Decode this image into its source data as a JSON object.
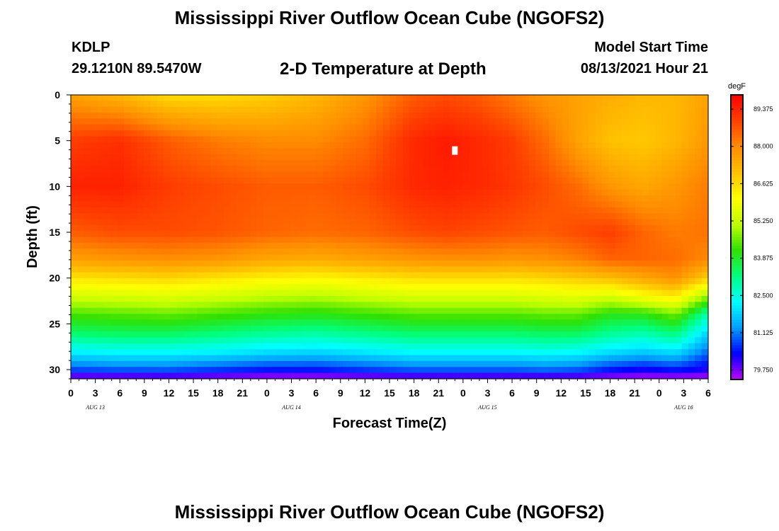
{
  "header": {
    "title": "Mississippi River Outflow Ocean Cube (NGOFS2)",
    "station": "KDLP",
    "coordinates": "29.1210N  89.5470W",
    "subtitle": "2-D Temperature at Depth",
    "model_label": "Model Start Time",
    "model_time": "08/13/2021 Hour 21"
  },
  "footer": {
    "title": "Mississippi River Outflow Ocean Cube (NGOFS2)"
  },
  "chart_data": {
    "type": "heatmap",
    "title": "2-D Temperature at Depth",
    "xlabel": "Forecast Time(Z)",
    "ylabel": "Depth (ft)",
    "x_range_hours": [
      0,
      78
    ],
    "x_tick_labels": [
      "0",
      "3",
      "6",
      "9",
      "12",
      "15",
      "18",
      "21",
      "0",
      "3",
      "6",
      "9",
      "12",
      "15",
      "18",
      "21",
      "0",
      "3",
      "6",
      "9",
      "12",
      "15",
      "18",
      "21",
      "0",
      "3",
      "6"
    ],
    "date_labels": [
      {
        "text": "AUG 13",
        "hour": 3
      },
      {
        "text": "AUG 14",
        "hour": 27
      },
      {
        "text": "AUG 15",
        "hour": 51
      },
      {
        "text": "AUG 16",
        "hour": 75
      }
    ],
    "y_range_ft": [
      0,
      31
    ],
    "y_tick_labels": [
      "0",
      "5",
      "10",
      "15",
      "20",
      "25",
      "30"
    ],
    "colorbar": {
      "units": "degF",
      "min": 79.4,
      "max": 89.9,
      "tick_labels": [
        "89.375",
        "88.000",
        "86.625",
        "85.250",
        "83.875",
        "82.500",
        "81.125",
        "79.750"
      ],
      "colors": [
        "#bf00ff",
        "#0000ff",
        "#00a0ff",
        "#00ffff",
        "#00ff80",
        "#30e000",
        "#c0ff00",
        "#ffff00",
        "#ffc000",
        "#ff8c00",
        "#ff4000",
        "#ff0000"
      ]
    },
    "depths_ft": [
      0,
      5,
      10,
      15,
      18,
      20,
      22,
      24,
      26,
      28,
      30,
      31
    ],
    "times_hr": [
      0,
      6,
      12,
      18,
      24,
      30,
      36,
      42,
      46,
      50,
      54,
      58,
      62,
      66,
      70,
      74,
      78
    ],
    "temperature_degF": [
      [
        87.6,
        87.2,
        86.6,
        86.6,
        86.8,
        87.2,
        87.8,
        88.6,
        88.8,
        88.6,
        88.2,
        87.8,
        87.6,
        87.4,
        87.2,
        87.2,
        87.6
      ],
      [
        89.0,
        89.2,
        88.6,
        88.2,
        88.0,
        88.0,
        88.4,
        89.3,
        89.5,
        89.3,
        89.0,
        88.4,
        87.6,
        87.0,
        86.9,
        87.2,
        87.8
      ],
      [
        89.4,
        89.4,
        89.0,
        88.8,
        88.6,
        88.6,
        88.8,
        89.3,
        89.4,
        89.3,
        89.1,
        88.8,
        88.4,
        87.8,
        87.5,
        87.8,
        88.2
      ],
      [
        88.6,
        88.8,
        88.8,
        88.7,
        88.5,
        88.4,
        88.5,
        88.8,
        88.9,
        88.8,
        88.7,
        88.6,
        88.8,
        89.0,
        88.5,
        88.2,
        88.3
      ],
      [
        87.6,
        87.8,
        87.9,
        87.8,
        87.5,
        87.4,
        87.6,
        87.8,
        87.9,
        87.9,
        87.8,
        87.9,
        88.1,
        88.5,
        88.5,
        88.4,
        88.0
      ],
      [
        86.5,
        86.6,
        86.7,
        86.5,
        86.3,
        86.2,
        86.4,
        86.6,
        86.6,
        86.6,
        86.6,
        86.7,
        86.9,
        87.1,
        87.5,
        87.9,
        86.8
      ],
      [
        85.4,
        85.5,
        85.6,
        85.4,
        85.2,
        85.1,
        85.3,
        85.5,
        85.5,
        85.5,
        85.5,
        85.6,
        85.7,
        85.5,
        86.0,
        86.4,
        84.8
      ],
      [
        84.3,
        84.4,
        84.5,
        84.3,
        84.1,
        84.0,
        84.2,
        84.4,
        84.4,
        84.4,
        84.4,
        84.5,
        84.5,
        84.0,
        84.0,
        84.6,
        82.8
      ],
      [
        83.4,
        83.5,
        83.5,
        83.3,
        83.1,
        83.0,
        83.2,
        83.4,
        83.4,
        83.4,
        83.4,
        83.5,
        83.5,
        83.1,
        82.9,
        83.3,
        81.8
      ],
      [
        82.2,
        82.3,
        82.3,
        82.2,
        82.0,
        81.9,
        82.1,
        82.3,
        82.3,
        82.3,
        82.3,
        82.4,
        82.3,
        82.0,
        81.8,
        82.0,
        81.0
      ],
      [
        80.8,
        80.9,
        80.9,
        80.7,
        80.5,
        80.5,
        80.7,
        80.9,
        80.9,
        80.9,
        80.9,
        81.0,
        80.9,
        80.5,
        80.3,
        80.5,
        80.2
      ],
      [
        79.5,
        79.5,
        79.6,
        79.5,
        79.4,
        79.4,
        79.5,
        79.6,
        79.6,
        79.6,
        79.6,
        79.6,
        79.6,
        79.5,
        79.4,
        79.4,
        79.4
      ]
    ]
  }
}
